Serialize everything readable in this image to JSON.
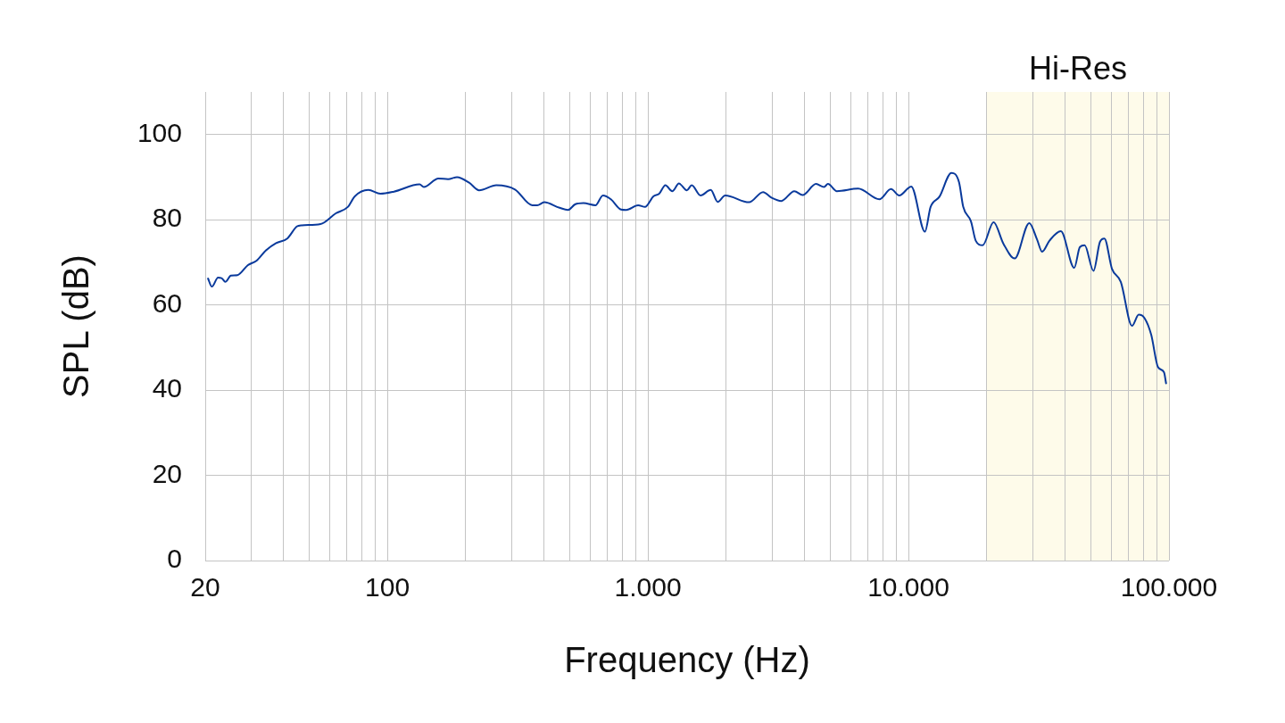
{
  "chart_data": {
    "type": "line",
    "xlabel": "Frequency (Hz)",
    "ylabel": "SPL (dB)",
    "x": [
      20.5,
      21.2,
      22.4,
      23.1,
      23.9,
      25.1,
      26.6,
      29.1,
      31.5,
      34.2,
      37.4,
      41.3,
      44.9,
      46.9,
      55.4,
      63.4,
      70.5,
      75.0,
      84.5,
      94.0,
      106,
      133,
      138,
      157,
      171,
      185,
      206,
      225,
      262,
      309,
      360,
      376,
      400,
      458,
      494,
      525,
      566,
      629,
      672,
      721,
      789,
      826,
      917,
      975,
      1050,
      1105,
      1167,
      1240,
      1316,
      1411,
      1473,
      1592,
      1743,
      1852,
      1980,
      2445,
      2767,
      2978,
      3250,
      3648,
      3926,
      4419,
      4745,
      4909,
      5313,
      6415,
      7733,
      8570,
      9220,
      10250,
      11570,
      12160,
      13150,
      14620,
      15640,
      16230,
      17380,
      18120,
      19260,
      21220,
      23140,
      25570,
      29090,
      31140,
      32580,
      34780,
      38450,
      43280,
      45510,
      47450,
      51310,
      54330,
      56500,
      60400,
      65330,
      72130,
      76500,
      80590,
      85460,
      90740,
      95670,
      97460
    ],
    "series": [
      {
        "color": "#0a3a9c",
        "values": [
          66.2,
          64.3,
          66.4,
          66.3,
          65.4,
          66.9,
          67.0,
          69.3,
          70.4,
          72.8,
          74.5,
          75.6,
          78.4,
          78.7,
          79.0,
          81.5,
          83.0,
          85.5,
          87.0,
          86.1,
          86.6,
          88.3,
          87.7,
          89.7,
          89.5,
          90.0,
          88.7,
          86.9,
          88.1,
          87.1,
          83.4,
          83.4,
          84.1,
          82.8,
          82.3,
          83.6,
          83.9,
          83.4,
          85.7,
          84.8,
          82.4,
          82.3,
          83.4,
          83.0,
          85.5,
          86.1,
          88.1,
          86.7,
          88.5,
          86.9,
          88.1,
          85.7,
          87.0,
          84.2,
          85.7,
          84.1,
          86.5,
          85.2,
          84.4,
          86.7,
          85.8,
          88.4,
          87.7,
          88.4,
          86.7,
          87.3,
          84.8,
          87.2,
          85.7,
          87.8,
          77.2,
          83.0,
          85.4,
          91.0,
          88.8,
          83.0,
          79.6,
          75.1,
          74.0,
          79.4,
          74.4,
          70.9,
          79.2,
          75.4,
          72.5,
          75.1,
          77.3,
          68.7,
          73.6,
          74.0,
          68.0,
          74.8,
          75.6,
          68.5,
          65.4,
          55.1,
          57.7,
          56.9,
          53.0,
          45.4,
          44.2,
          41.6
        ]
      }
    ],
    "log": "x",
    "xlim": [
      20,
      100000
    ],
    "xticks": [
      20,
      {
        "value": 30,
        "label": null
      },
      {
        "value": 40,
        "label": null
      },
      {
        "value": 50,
        "label": null
      },
      {
        "value": 60,
        "label": null
      },
      {
        "value": 70,
        "label": null
      },
      {
        "value": 80,
        "label": null
      },
      {
        "value": 90,
        "label": null
      },
      100,
      {
        "value": 200,
        "label": null
      },
      {
        "value": 300,
        "label": null
      },
      {
        "value": 400,
        "label": null
      },
      {
        "value": 500,
        "label": null
      },
      {
        "value": 600,
        "label": null
      },
      {
        "value": 700,
        "label": null
      },
      {
        "value": 800,
        "label": null
      },
      {
        "value": 900,
        "label": null
      },
      {
        "value": 1000,
        "label": "1.000"
      },
      {
        "value": 2000,
        "label": null
      },
      {
        "value": 3000,
        "label": null
      },
      {
        "value": 4000,
        "label": null
      },
      {
        "value": 5000,
        "label": null
      },
      {
        "value": 6000,
        "label": null
      },
      {
        "value": 7000,
        "label": null
      },
      {
        "value": 8000,
        "label": null
      },
      {
        "value": 9000,
        "label": null
      },
      {
        "value": 10000,
        "label": "10.000"
      },
      {
        "value": 20000,
        "label": null
      },
      {
        "value": 30000,
        "label": null
      },
      {
        "value": 40000,
        "label": null
      },
      {
        "value": 50000,
        "label": null
      },
      {
        "value": 60000,
        "label": null
      },
      {
        "value": 70000,
        "label": null
      },
      {
        "value": 80000,
        "label": null
      },
      {
        "value": 90000,
        "label": null
      },
      {
        "value": 100000,
        "label": "100.000"
      }
    ],
    "ylim": [
      0,
      110
    ],
    "yticks": [
      0,
      20,
      40,
      60,
      80,
      100
    ],
    "grid": true,
    "bands": [
      {
        "axis": "x",
        "from": 20000,
        "to": 100000,
        "label": "Hi-Res",
        "color": "#fefbea"
      }
    ]
  }
}
